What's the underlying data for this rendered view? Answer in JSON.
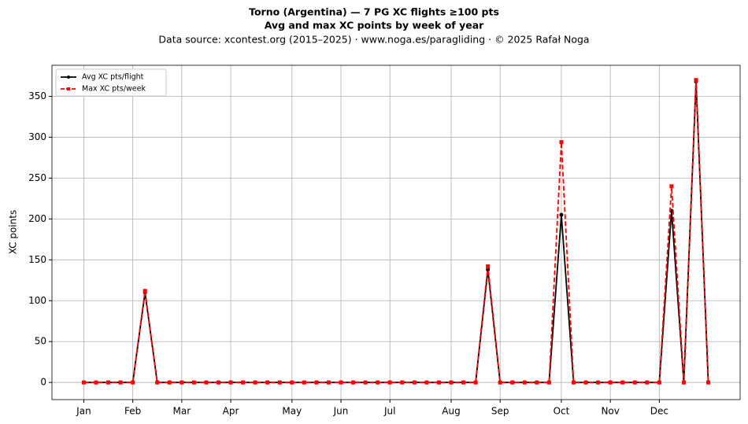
{
  "chart_data": {
    "type": "line",
    "title": "Torno (Argentina)  —  7 PG XC flights ≥100 pts",
    "subtitle": "Avg and max XC points by week of year",
    "source": "Data source: xcontest.org (2015–2025)  ·  www.noga.es/paragliding  ·  © 2025 Rafał Noga",
    "ylabel": "XC points",
    "x": [
      1,
      2,
      3,
      4,
      5,
      6,
      7,
      8,
      9,
      10,
      11,
      12,
      13,
      14,
      15,
      16,
      17,
      18,
      19,
      20,
      21,
      22,
      23,
      24,
      25,
      26,
      27,
      28,
      29,
      30,
      31,
      32,
      33,
      34,
      35,
      36,
      37,
      38,
      39,
      40,
      41,
      42,
      43,
      44,
      45,
      46,
      47,
      48,
      49,
      50,
      51,
      52
    ],
    "series": [
      {
        "name": "Avg XC pts/flight",
        "color": "#000000",
        "linestyle": "solid",
        "marker": "circle",
        "values": [
          0,
          0,
          0,
          0,
          0,
          110,
          0,
          0,
          0,
          0,
          0,
          0,
          0,
          0,
          0,
          0,
          0,
          0,
          0,
          0,
          0,
          0,
          0,
          0,
          0,
          0,
          0,
          0,
          0,
          0,
          0,
          0,
          0,
          138,
          0,
          0,
          0,
          0,
          0,
          205,
          0,
          0,
          0,
          0,
          0,
          0,
          0,
          0,
          210,
          0,
          368,
          0
        ]
      },
      {
        "name": "Max XC pts/week",
        "color": "#ff0000",
        "linestyle": "dashed",
        "marker": "square",
        "values": [
          0,
          0,
          0,
          0,
          0,
          112,
          0,
          0,
          0,
          0,
          0,
          0,
          0,
          0,
          0,
          0,
          0,
          0,
          0,
          0,
          0,
          0,
          0,
          0,
          0,
          0,
          0,
          0,
          0,
          0,
          0,
          0,
          0,
          142,
          0,
          0,
          0,
          0,
          0,
          294,
          0,
          0,
          0,
          0,
          0,
          0,
          0,
          0,
          240,
          0,
          370,
          0
        ]
      }
    ],
    "xlim": [
      -1.6,
      54.6
    ],
    "ylim": [
      -21,
      388
    ],
    "xticks": [
      {
        "value": 1,
        "label": "Jan"
      },
      {
        "value": 5,
        "label": "Feb"
      },
      {
        "value": 9,
        "label": "Mar"
      },
      {
        "value": 13,
        "label": "Apr"
      },
      {
        "value": 18,
        "label": "May"
      },
      {
        "value": 22,
        "label": "Jun"
      },
      {
        "value": 26,
        "label": "Jul"
      },
      {
        "value": 31,
        "label": "Aug"
      },
      {
        "value": 35,
        "label": "Sep"
      },
      {
        "value": 40,
        "label": "Oct"
      },
      {
        "value": 44,
        "label": "Nov"
      },
      {
        "value": 48,
        "label": "Dec"
      }
    ],
    "yticks": [
      0,
      50,
      100,
      150,
      200,
      250,
      300,
      350
    ],
    "grid": true,
    "legend": "upper left"
  }
}
